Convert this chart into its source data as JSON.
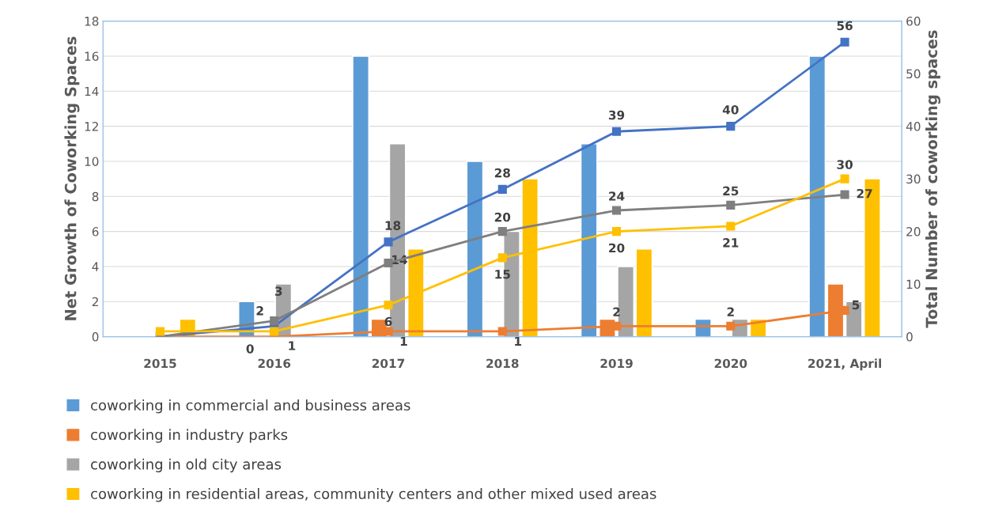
{
  "chart_data": {
    "type": "bar",
    "ylabel": "Net Growth of Coworking Spaces",
    "y2label": "Total Number of coworking spaces",
    "categories": [
      "2015",
      "2016",
      "2017",
      "2018",
      "2019",
      "2020",
      "2021, April"
    ],
    "ylim": [
      0,
      18
    ],
    "yticks": [
      0,
      2,
      4,
      6,
      8,
      10,
      12,
      14,
      16,
      18
    ],
    "y2lim": [
      0,
      60
    ],
    "y2ticks": [
      0,
      10,
      20,
      30,
      40,
      50,
      60
    ],
    "grid": "y",
    "legend": "bottom",
    "series": [
      {
        "name": "coworking in commercial and business areas",
        "color": "#5b9bd5",
        "values": [
          null,
          2,
          16,
          10,
          11,
          1,
          16
        ]
      },
      {
        "name": "coworking in industry parks",
        "color": "#ed7d31",
        "values": [
          null,
          null,
          1,
          null,
          1,
          null,
          3
        ]
      },
      {
        "name": "coworking in old city areas",
        "color": "#a5a5a5",
        "values": [
          null,
          3,
          11,
          6,
          4,
          1,
          2
        ]
      },
      {
        "name": "coworking in residential areas, community centers and other mixed used areas",
        "color": "#ffc000",
        "values": [
          1,
          null,
          5,
          9,
          5,
          1,
          9
        ]
      },
      {
        "type": "line",
        "axis": "y2",
        "marker": "square",
        "color": "#4472c4",
        "values": [
          0,
          2,
          18,
          28,
          39,
          40,
          56
        ],
        "value_labels": [
          null,
          "2",
          "18",
          "28",
          "39",
          "40",
          "56"
        ]
      },
      {
        "type": "line",
        "axis": "y2",
        "marker": "square",
        "color": "#ed7d31",
        "values": [
          0,
          0,
          1,
          1,
          2,
          2,
          5
        ],
        "value_labels": [
          null,
          "0",
          "1",
          "1",
          "2",
          "2",
          "5"
        ]
      },
      {
        "type": "line",
        "axis": "y2",
        "marker": "square",
        "color": "#7f7f7f",
        "values": [
          0,
          3,
          14,
          20,
          24,
          25,
          27
        ],
        "value_labels": [
          null,
          "3",
          "14",
          "20",
          "24",
          "25",
          "27"
        ]
      },
      {
        "type": "line",
        "axis": "y2",
        "marker": "square",
        "color": "#ffc000",
        "values": [
          1,
          1,
          6,
          15,
          20,
          21,
          30
        ],
        "value_labels": [
          null,
          "1",
          "6",
          "15",
          "20",
          "21",
          "30"
        ]
      }
    ]
  }
}
